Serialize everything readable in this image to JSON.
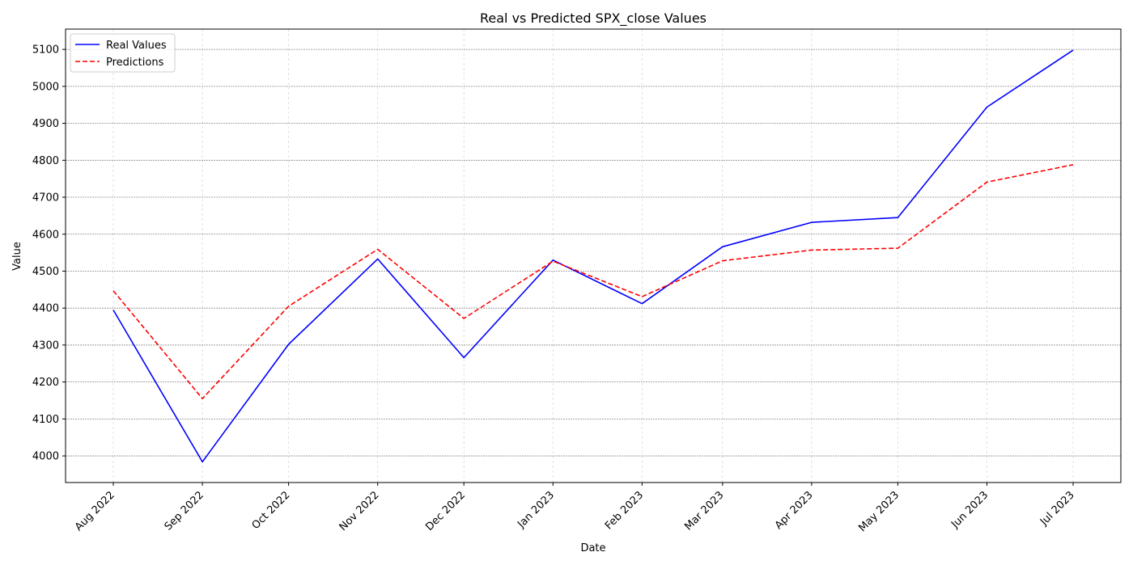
{
  "chart_data": {
    "type": "line",
    "title": "Real vs Predicted SPX_close Values",
    "xlabel": "Date",
    "ylabel": "Value",
    "categories": [
      "Aug 2022",
      "Sep 2022",
      "Oct 2022",
      "Nov 2022",
      "Dec 2022",
      "Jan 2023",
      "Feb 2023",
      "Mar 2023",
      "Apr 2023",
      "May 2023",
      "Jun 2023",
      "Jul 2023"
    ],
    "x": [
      "2022-08-01",
      "2022-09-01",
      "2022-10-01",
      "2022-11-01",
      "2022-12-01",
      "2023-01-01",
      "2023-02-01",
      "2023-03-01",
      "2023-04-01",
      "2023-05-01",
      "2023-06-01",
      "2023-07-01"
    ],
    "series": [
      {
        "name": "Real Values",
        "color": "#0000ff",
        "style": "solid",
        "values": [
          4395,
          3984,
          4302,
          4533,
          4266,
          4530,
          4412,
          4566,
          4632,
          4645,
          4944,
          5098
        ]
      },
      {
        "name": "Predictions",
        "color": "#ff0000",
        "style": "dashed",
        "values": [
          4447,
          4155,
          4405,
          4559,
          4372,
          4527,
          4431,
          4528,
          4557,
          4562,
          4741,
          4788
        ]
      }
    ],
    "yticks": [
      4000,
      4100,
      4200,
      4300,
      4400,
      4500,
      4600,
      4700,
      4800,
      4900,
      5000,
      5100
    ],
    "ylim": [
      3928,
      5155
    ],
    "grid": true,
    "legend_position": "top-left"
  }
}
